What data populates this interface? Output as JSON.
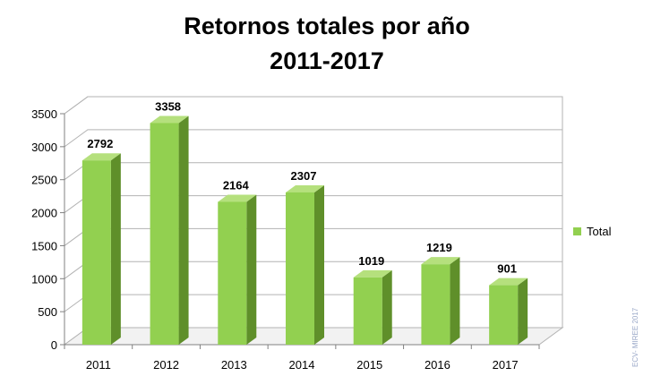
{
  "chart_data": {
    "type": "bar",
    "title_lines": [
      "Retornos totales por año",
      "2011-2017"
    ],
    "categories": [
      "2011",
      "2012",
      "2013",
      "2014",
      "2015",
      "2016",
      "2017"
    ],
    "series": [
      {
        "name": "Total",
        "values": [
          2792,
          3358,
          2164,
          2307,
          1019,
          1219,
          901
        ]
      }
    ],
    "data_labels": [
      "2792",
      "3358",
      "2164",
      "2307",
      "1019",
      "1219",
      "901"
    ],
    "yticks": [
      "0",
      "500",
      "1000",
      "1500",
      "2000",
      "2500",
      "3000",
      "3500"
    ],
    "ylim": [
      0,
      3500
    ],
    "grid": true,
    "legend": "right",
    "bar_3d": true,
    "colors": {
      "bar_front": "#92d050",
      "bar_side": "#5f8f2a",
      "bar_top": "#b5e07d",
      "grid": "#b3b3b3"
    }
  },
  "watermark": "ECV- MIREE 2017"
}
